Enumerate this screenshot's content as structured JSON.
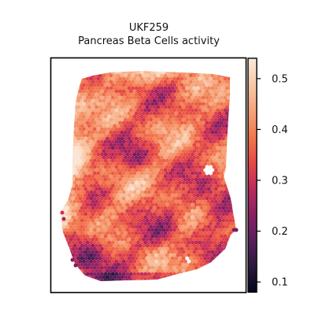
{
  "chart_data": {
    "type": "heatmap",
    "title_lines": [
      "UKF259",
      "Pancreas Beta Cells activity"
    ],
    "xlabel": "",
    "ylabel": "",
    "grid": false,
    "colorbar": {
      "range": [
        0.08,
        0.54
      ],
      "ticks": [
        0.1,
        0.2,
        0.3,
        0.4,
        0.5
      ],
      "tick_labels": [
        "0.1",
        "0.2",
        "0.3",
        "0.4",
        "0.5"
      ],
      "colormap": "rocket",
      "stops": [
        "#03051a",
        "#2b1a3d",
        "#5a1e5c",
        "#8a2163",
        "#bf2b5b",
        "#e84a45",
        "#f2794e",
        "#f6a47c",
        "#f9c9a8",
        "#faebdd"
      ]
    },
    "spots": {
      "pattern": "approximately 0.3–0.5 across tissue; high (0.45–0.53) along upper-left border and top; low (0.1–0.25) at lower-left corner and right-middle edge",
      "min": 0.09,
      "max": 0.53
    }
  }
}
